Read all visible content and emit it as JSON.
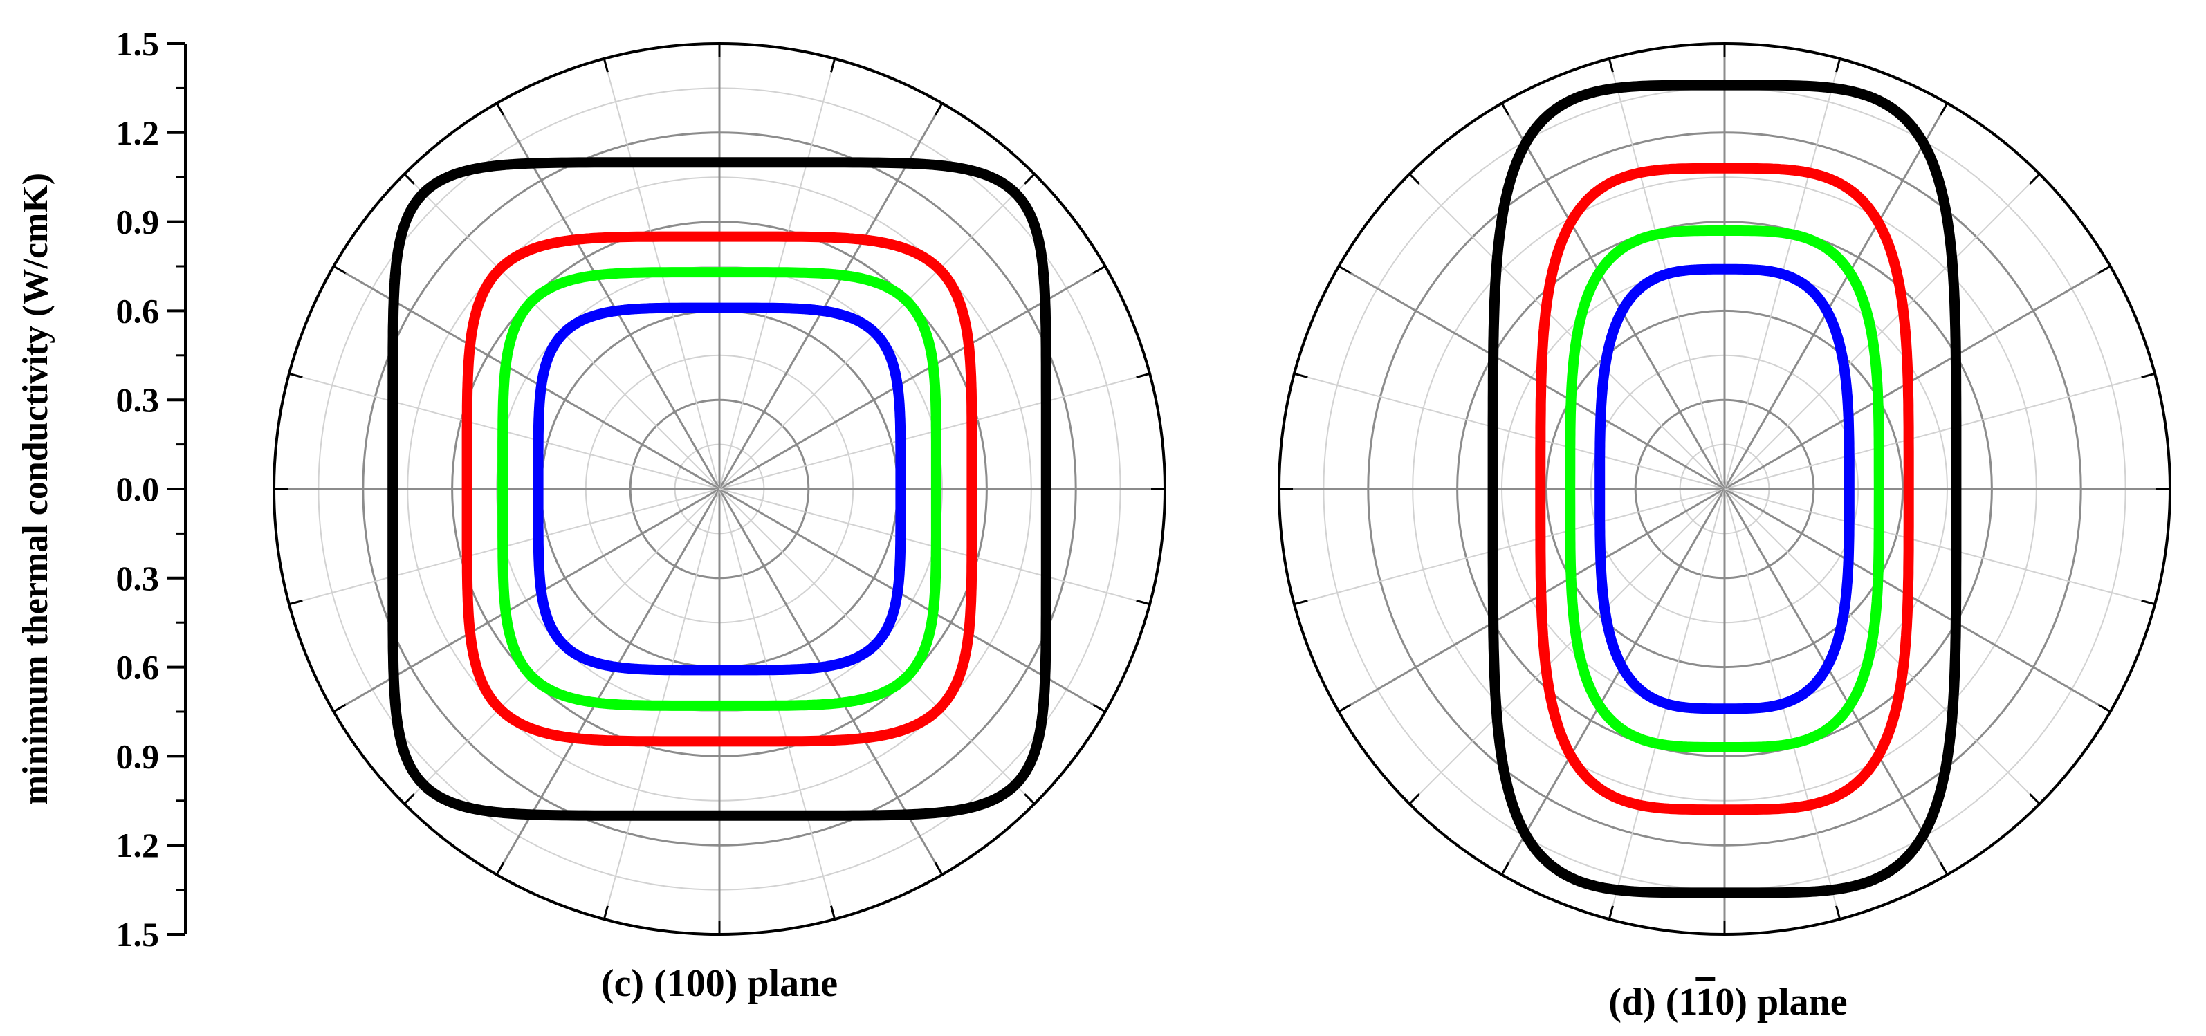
{
  "y_axis": {
    "title": "minimum  thermal conductivity (W/cmK)",
    "tick_labels": [
      "1.5",
      "1.2",
      "0.9",
      "0.6",
      "0.3",
      "0.0",
      "0.3",
      "0.6",
      "0.9",
      "1.2",
      "1.5"
    ]
  },
  "colors": {
    "series": [
      "#000000",
      "#ff0000",
      "#00ff00",
      "#0000ff"
    ],
    "grid_major": "#8c8c8c",
    "grid_minor": "#d2d2d2"
  },
  "chart_data": [
    {
      "type": "polar",
      "caption": "(c) (100) plane",
      "radial_range": [
        0,
        1.5
      ],
      "radial_major_step": 0.3,
      "radial_minor_step": 0.15,
      "angular_major_step_deg": 30,
      "angular_minor_step_deg": 15,
      "grid": true,
      "series": [
        {
          "color": "#000000",
          "a": 1.1,
          "b": 1.1,
          "n": 7.0
        },
        {
          "color": "#ff0000",
          "a": 0.85,
          "b": 0.85,
          "n": 5.0
        },
        {
          "color": "#00ff00",
          "a": 0.73,
          "b": 0.73,
          "n": 4.8
        },
        {
          "color": "#0000ff",
          "a": 0.61,
          "b": 0.61,
          "n": 4.6
        }
      ]
    },
    {
      "type": "polar",
      "caption_prefix": "(d) (1",
      "caption_bar": "1",
      "caption_suffix": "0) plane",
      "radial_range": [
        0,
        1.5
      ],
      "radial_major_step": 0.3,
      "radial_minor_step": 0.15,
      "angular_major_step_deg": 30,
      "angular_minor_step_deg": 15,
      "grid": true,
      "series": [
        {
          "color": "#000000",
          "a": 0.78,
          "b": 1.36,
          "n": 4.5
        },
        {
          "color": "#ff0000",
          "a": 0.62,
          "b": 1.08,
          "n": 3.8
        },
        {
          "color": "#00ff00",
          "a": 0.52,
          "b": 0.87,
          "n": 3.6
        },
        {
          "color": "#0000ff",
          "a": 0.42,
          "b": 0.74,
          "n": 3.4
        }
      ]
    }
  ]
}
